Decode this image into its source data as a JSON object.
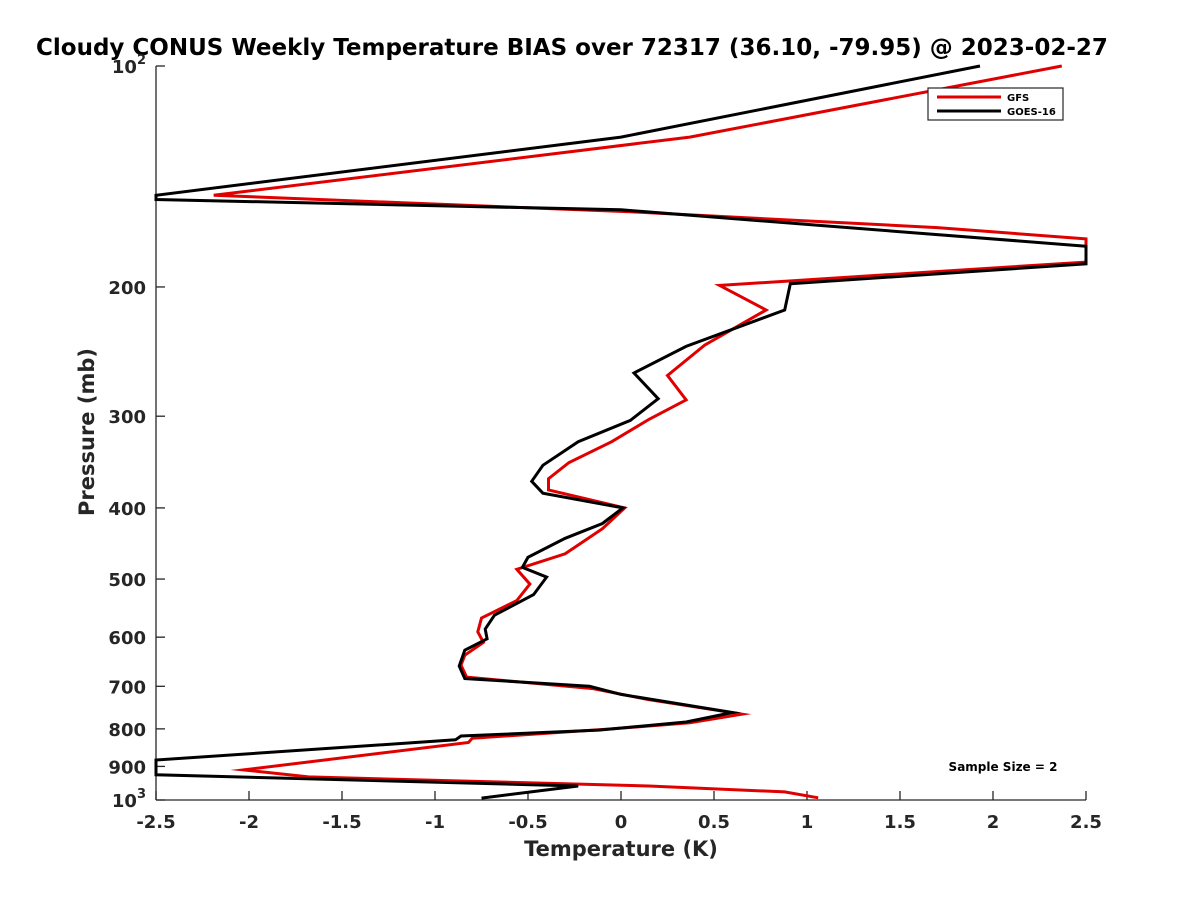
{
  "chart_data": {
    "type": "line",
    "title": "Cloudy CONUS Weekly Temperature BIAS over 72317 (36.10, -79.95) @ 2023-02-27",
    "xlabel": "Temperature (K)",
    "ylabel": "Pressure (mb)",
    "xlim": [
      -2.5,
      2.5
    ],
    "ylim": [
      100,
      1000
    ],
    "y_scale": "log",
    "y_reversed": true,
    "x_ticks": [
      "-2.5",
      "-2",
      "-1.5",
      "-1",
      "-0.5",
      "0",
      "0.5",
      "1",
      "1.5",
      "2",
      "2.5"
    ],
    "y_ticks": [
      {
        "value": 100,
        "base": "10",
        "exp": "2"
      },
      {
        "value": 200,
        "label": "200"
      },
      {
        "value": 300,
        "label": "300"
      },
      {
        "value": 400,
        "label": "400"
      },
      {
        "value": 500,
        "label": "500"
      },
      {
        "value": 600,
        "label": "600"
      },
      {
        "value": 700,
        "label": "700"
      },
      {
        "value": 800,
        "label": "800"
      },
      {
        "value": 900,
        "label": "900"
      },
      {
        "value": 1000,
        "base": "10",
        "exp": "3"
      }
    ],
    "legend_position": "top-right",
    "annotation": "Sample Size = 2",
    "series": [
      {
        "name": "GFS",
        "color": "#e00000",
        "points": [
          [
            2.37,
            100
          ],
          [
            0.37,
            125
          ],
          [
            -2.19,
            150
          ],
          [
            0.05,
            158
          ],
          [
            1.7,
            166
          ],
          [
            2.5,
            172
          ],
          [
            2.5,
            185
          ],
          [
            0.53,
            199
          ],
          [
            0.78,
            215
          ],
          [
            0.45,
            240
          ],
          [
            0.25,
            264
          ],
          [
            0.35,
            285
          ],
          [
            0.15,
            303
          ],
          [
            -0.05,
            325
          ],
          [
            -0.28,
            347
          ],
          [
            -0.39,
            365
          ],
          [
            -0.39,
            378
          ],
          [
            0.02,
            400
          ],
          [
            -0.1,
            427
          ],
          [
            -0.3,
            462
          ],
          [
            -0.56,
            485
          ],
          [
            -0.49,
            508
          ],
          [
            -0.56,
            535
          ],
          [
            -0.75,
            565
          ],
          [
            -0.77,
            590
          ],
          [
            -0.74,
            610
          ],
          [
            -0.84,
            635
          ],
          [
            -0.86,
            655
          ],
          [
            -0.83,
            680
          ],
          [
            -0.15,
            705
          ],
          [
            0.15,
            730
          ],
          [
            0.65,
            764
          ],
          [
            0.37,
            785
          ],
          [
            -0.05,
            800
          ],
          [
            -0.4,
            811
          ],
          [
            -0.8,
            824
          ],
          [
            -0.82,
            835
          ],
          [
            -2.03,
            910
          ],
          [
            -1.68,
            930
          ],
          [
            0.15,
            957
          ],
          [
            0.88,
            975
          ],
          [
            1.06,
            993
          ]
        ]
      },
      {
        "name": "GOES-16",
        "color": "#000000",
        "points": [
          [
            1.93,
            100
          ],
          [
            0.0,
            125
          ],
          [
            -2.5,
            150
          ],
          [
            -2.5,
            152
          ],
          [
            0.0,
            157
          ],
          [
            1.35,
            167
          ],
          [
            2.5,
            176
          ],
          [
            2.5,
            186
          ],
          [
            0.91,
            198
          ],
          [
            0.88,
            215
          ],
          [
            0.35,
            241
          ],
          [
            0.07,
            262
          ],
          [
            0.2,
            284
          ],
          [
            0.05,
            304
          ],
          [
            -0.23,
            325
          ],
          [
            -0.42,
            350
          ],
          [
            -0.48,
            368
          ],
          [
            -0.42,
            382
          ],
          [
            0.01,
            400
          ],
          [
            -0.1,
            420
          ],
          [
            -0.3,
            440
          ],
          [
            -0.5,
            467
          ],
          [
            -0.53,
            482
          ],
          [
            -0.4,
            497
          ],
          [
            -0.47,
            525
          ],
          [
            -0.68,
            560
          ],
          [
            -0.73,
            585
          ],
          [
            -0.72,
            603
          ],
          [
            -0.84,
            625
          ],
          [
            -0.87,
            657
          ],
          [
            -0.84,
            683
          ],
          [
            -0.17,
            700
          ],
          [
            0.0,
            718
          ],
          [
            0.6,
            760
          ],
          [
            0.35,
            783
          ],
          [
            -0.12,
            803
          ],
          [
            -0.86,
            818
          ],
          [
            -0.89,
            828
          ],
          [
            -2.5,
            882
          ],
          [
            -2.5,
            924
          ],
          [
            -0.23,
            957
          ],
          [
            -0.75,
            994
          ]
        ]
      }
    ]
  }
}
